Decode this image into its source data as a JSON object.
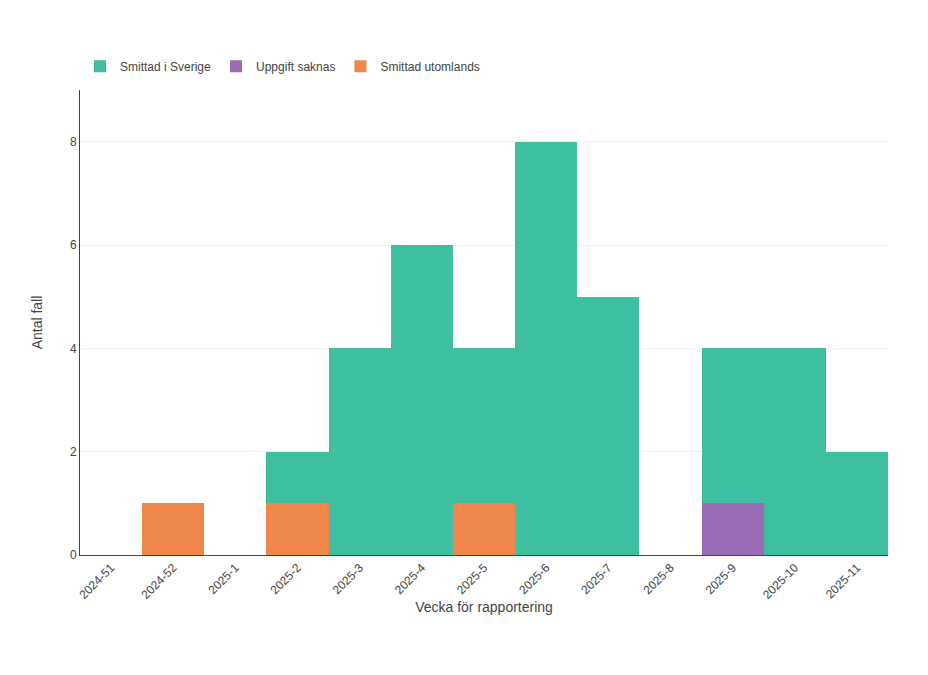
{
  "chart_data": {
    "type": "bar",
    "stacked": true,
    "xlabel": "Vecka för rapportering",
    "ylabel": "Antal fall",
    "categories": [
      "2024-51",
      "2024-52",
      "2025-1",
      "2025-2",
      "2025-3",
      "2025-4",
      "2025-5",
      "2025-6",
      "2025-7",
      "2025-8",
      "2025-9",
      "2025-10",
      "2025-11"
    ],
    "series": [
      {
        "name": "Smittad utomlands",
        "color": "#f0874a",
        "values": [
          0,
          1,
          0,
          1,
          0,
          0,
          1,
          0,
          0,
          0,
          0,
          0,
          0
        ]
      },
      {
        "name": "Uppgift saknas",
        "color": "#9b6bb5",
        "values": [
          0,
          0,
          0,
          0,
          0,
          0,
          0,
          0,
          0,
          0,
          1,
          0,
          0
        ]
      },
      {
        "name": "Smittad i Sverige",
        "color": "#3dbfa0",
        "values": [
          0,
          0,
          0,
          1,
          4,
          6,
          3,
          8,
          5,
          0,
          3,
          4,
          2
        ]
      }
    ],
    "ylim": [
      0,
      9
    ],
    "yticks": [
      0,
      2,
      4,
      6,
      8
    ],
    "grid": true,
    "legend": "top"
  }
}
